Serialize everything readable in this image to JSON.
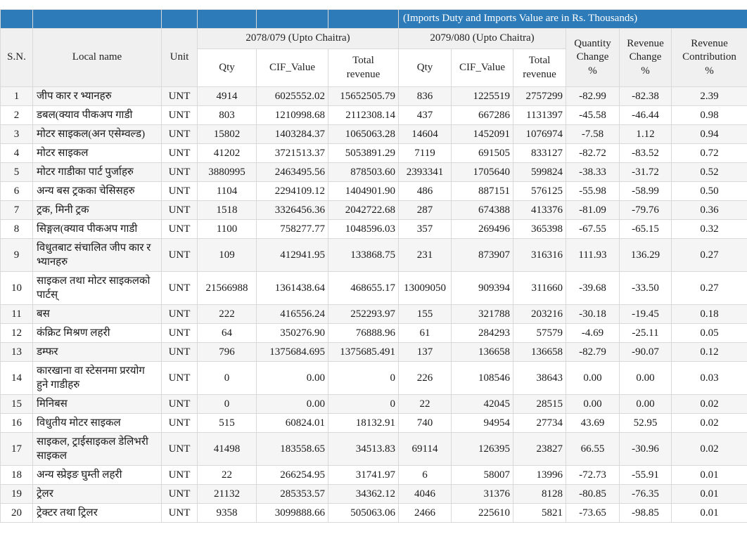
{
  "colors": {
    "header_blue": "#2d7bb9",
    "banner_text": "#ffffff",
    "header_band_gray": "#f0f0f0",
    "row_stripe": "#f5f5f5",
    "border": "#d9d9d9",
    "text": "#1a1a1a"
  },
  "chart_data": {
    "type": "table",
    "title": "(Imports Duty and Imports Value are in Rs. Thousands)",
    "column_groups": [
      "2078/079 (Upto Chaitra)",
      "2079/080 (Upto Chaitra)"
    ],
    "columns": [
      "S.N.",
      "Local name",
      "Unit",
      "Qty",
      "CIF_Value",
      "Total\nrevenue",
      "Qty",
      "CIF_Value",
      "Total\nrevenue",
      "Quantity\nChange\n%",
      "Revenue\nChange\n%",
      "Revenue\nContribution\n%"
    ],
    "rows": [
      [
        "1",
        "जीप कार र भ्यानहरु",
        "UNT",
        "4914",
        "6025552.02",
        "15652505.79",
        "836",
        "1225519",
        "2757299",
        "-82.99",
        "-82.38",
        "2.39"
      ],
      [
        "2",
        "डबल(क्याव पीकअप गाडी",
        "UNT",
        "803",
        "1210998.68",
        "2112308.14",
        "437",
        "667286",
        "1131397",
        "-45.58",
        "-46.44",
        "0.98"
      ],
      [
        "3",
        "मोटर साइकल(अन एसेम्वल्ड)",
        "UNT",
        "15802",
        "1403284.37",
        "1065063.28",
        "14604",
        "1452091",
        "1076974",
        "-7.58",
        "1.12",
        "0.94"
      ],
      [
        "4",
        "मोटर साइकल",
        "UNT",
        "41202",
        "3721513.37",
        "5053891.29",
        "7119",
        "691505",
        "833127",
        "-82.72",
        "-83.52",
        "0.72"
      ],
      [
        "5",
        "मोटर गाडीका पार्ट पुर्जाहरु",
        "UNT",
        "3880995",
        "2463495.56",
        "878503.60",
        "2393341",
        "1705640",
        "599824",
        "-38.33",
        "-31.72",
        "0.52"
      ],
      [
        "6",
        "अन्य बस ट्रकका चेसिसहरु",
        "UNT",
        "1104",
        "2294109.12",
        "1404901.90",
        "486",
        "887151",
        "576125",
        "-55.98",
        "-58.99",
        "0.50"
      ],
      [
        "7",
        "ट्रक, मिनी ट्रक",
        "UNT",
        "1518",
        "3326456.36",
        "2042722.68",
        "287",
        "674388",
        "413376",
        "-81.09",
        "-79.76",
        "0.36"
      ],
      [
        "8",
        "सिङ्गल(क्याव पीकअप गाडी",
        "UNT",
        "1100",
        "758277.77",
        "1048596.03",
        "357",
        "269496",
        "365398",
        "-67.55",
        "-65.15",
        "0.32"
      ],
      [
        "9",
        "विधुतबाट संचालित जीप कार र भ्यानहरु",
        "UNT",
        "109",
        "412941.95",
        "133868.75",
        "231",
        "873907",
        "316316",
        "111.93",
        "136.29",
        "0.27"
      ],
      [
        "10",
        "साइकल तथा मोटर साइकलको पार्टस्",
        "UNT",
        "21566988",
        "1361438.64",
        "468655.17",
        "13009050",
        "909394",
        "311660",
        "-39.68",
        "-33.50",
        "0.27"
      ],
      [
        "11",
        "बस",
        "UNT",
        "222",
        "416556.24",
        "252293.97",
        "155",
        "321788",
        "203216",
        "-30.18",
        "-19.45",
        "0.18"
      ],
      [
        "12",
        "कंक्रिट मिश्रण लहरी",
        "UNT",
        "64",
        "350276.90",
        "76888.96",
        "61",
        "284293",
        "57579",
        "-4.69",
        "-25.11",
        "0.05"
      ],
      [
        "13",
        "डम्फर",
        "UNT",
        "796",
        "1375684.695",
        "1375685.491",
        "137",
        "136658",
        "136658",
        "-82.79",
        "-90.07",
        "0.12"
      ],
      [
        "14",
        "कारखाना वा स्टेसनमा प्ररयोग हुने गाडीहरु",
        "UNT",
        "0",
        "0.00",
        "0",
        "226",
        "108546",
        "38643",
        "0.00",
        "0.00",
        "0.03"
      ],
      [
        "15",
        "मिनिबस",
        "UNT",
        "0",
        "0.00",
        "0",
        "22",
        "42045",
        "28515",
        "0.00",
        "0.00",
        "0.02"
      ],
      [
        "16",
        "विधुतीय मोटर साइकल",
        "UNT",
        "515",
        "60824.01",
        "18132.91",
        "740",
        "94954",
        "27734",
        "43.69",
        "52.95",
        "0.02"
      ],
      [
        "17",
        "साइकल, ट्राईसाइकल डेलिभरी साइकल",
        "UNT",
        "41498",
        "183558.65",
        "34513.83",
        "69114",
        "126395",
        "23827",
        "66.55",
        "-30.96",
        "0.02"
      ],
      [
        "18",
        "अन्य स्प्रेइङ घुम्ती लहरी",
        "UNT",
        "22",
        "266254.95",
        "31741.97",
        "6",
        "58007",
        "13996",
        "-72.73",
        "-55.91",
        "0.01"
      ],
      [
        "19",
        "ट्रेलर",
        "UNT",
        "21132",
        "285353.57",
        "34362.12",
        "4046",
        "31376",
        "8128",
        "-80.85",
        "-76.35",
        "0.01"
      ],
      [
        "20",
        "ट्रेक्टर तथा ट्रिलर",
        "UNT",
        "9358",
        "3099888.66",
        "505063.06",
        "2466",
        "225610",
        "5821",
        "-73.65",
        "-98.85",
        "0.01"
      ]
    ]
  }
}
